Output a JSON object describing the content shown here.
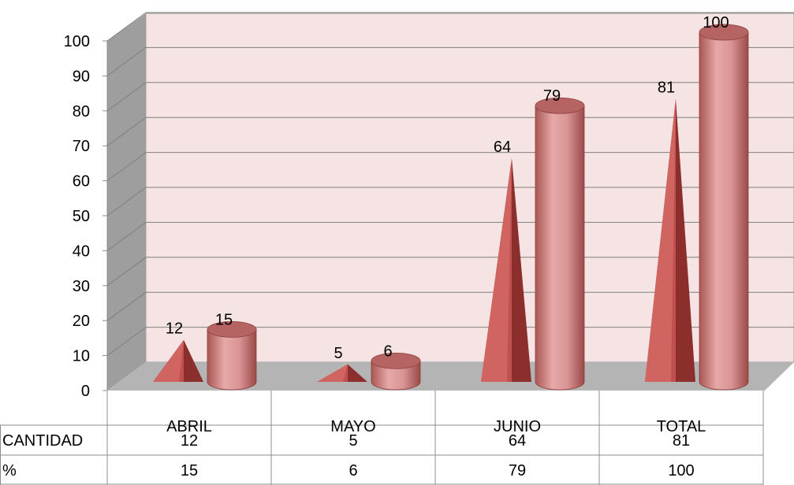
{
  "chart_data": {
    "type": "bar",
    "title": "",
    "xlabel": "",
    "ylabel": "",
    "ylim": [
      0,
      100
    ],
    "yticks": [
      0,
      10,
      20,
      30,
      40,
      50,
      60,
      70,
      80,
      90,
      100
    ],
    "categories": [
      "ABRIL",
      "MAYO",
      "JUNIO",
      "TOTAL"
    ],
    "series": [
      {
        "name": "CANTIDAD",
        "shape": "pyramid",
        "values": [
          12,
          5,
          64,
          81
        ]
      },
      {
        "name": "%",
        "shape": "cylinder",
        "values": [
          15,
          6,
          79,
          100
        ]
      }
    ],
    "data_labels": {
      "CANTIDAD": [
        "12",
        "5",
        "64",
        "81"
      ],
      "%": [
        "15",
        "6",
        "79",
        "100"
      ]
    },
    "table": {
      "rows": [
        {
          "label": "CANTIDAD",
          "cells": [
            "12",
            "5",
            "64",
            "81"
          ]
        },
        {
          "label": "%",
          "cells": [
            "15",
            "6",
            "79",
            "100"
          ]
        }
      ]
    },
    "grid": true,
    "legend": "data-table",
    "colors": {
      "wall": "#f6e4e4",
      "side_wall": "#9e9e9e",
      "floor": "#b4b4b4",
      "grid": "#7f7f7f",
      "pyramid_front": "#c0504d",
      "pyramid_side": "#8b2e2c",
      "cylinder_body": "#d99594",
      "cylinder_top": "#b56463"
    }
  }
}
